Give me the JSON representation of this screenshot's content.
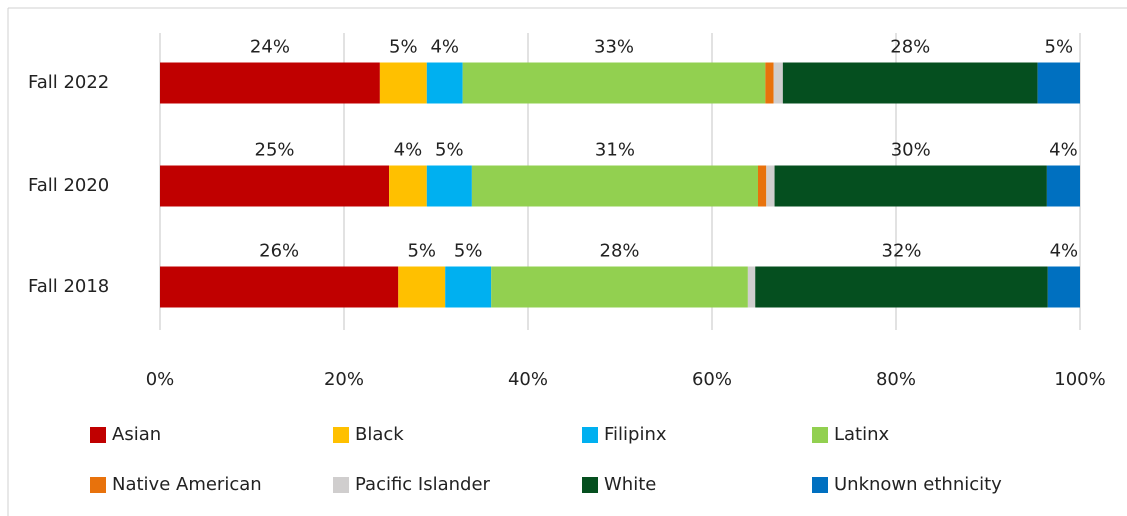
{
  "chart_data": {
    "type": "stacked-bar-horizontal",
    "categories": [
      "Fall 2022",
      "Fall 2020",
      "Fall 2018"
    ],
    "series": [
      {
        "name": "Asian",
        "color": "#c00000",
        "values": [
          23.9,
          24.9,
          25.9
        ],
        "value_labels": [
          "24%",
          "25%",
          "26%"
        ]
      },
      {
        "name": "Black",
        "color": "#ffc000",
        "values": [
          5.1,
          4.1,
          5.1
        ],
        "value_labels": [
          "5%",
          "4%",
          "5%"
        ]
      },
      {
        "name": "Filipinx",
        "color": "#00b0f0",
        "values": [
          3.9,
          4.9,
          5.0
        ],
        "value_labels": [
          "4%",
          "5%",
          "5%"
        ]
      },
      {
        "name": "Latinx",
        "color": "#92d050",
        "values": [
          32.9,
          31.1,
          27.9
        ],
        "value_labels": [
          "33%",
          "31%",
          "28%"
        ]
      },
      {
        "name": "Native American",
        "color": "#e8720c",
        "values": [
          0.9,
          0.9,
          0
        ]
      },
      {
        "name": "Pacific Islander",
        "color": "#d0cece",
        "values": [
          1.0,
          0.9,
          0.8
        ]
      },
      {
        "name": "White",
        "color": "#054f1f",
        "values": [
          27.7,
          29.6,
          31.8
        ],
        "value_labels": [
          "28%",
          "30%",
          "32%"
        ]
      },
      {
        "name": "Unknown ethnicity",
        "color": "#0070c0",
        "values": [
          4.6,
          3.6,
          3.5
        ],
        "value_labels": [
          "5%",
          "4%",
          "4%"
        ]
      }
    ],
    "xlim": [
      0,
      100
    ],
    "xticks": [
      {
        "value": 0,
        "label": "0%"
      },
      {
        "value": 20,
        "label": "20%"
      },
      {
        "value": 40,
        "label": "40%"
      },
      {
        "value": 60,
        "label": "60%"
      },
      {
        "value": 80,
        "label": "80%"
      },
      {
        "value": 100,
        "label": "100%"
      }
    ],
    "grid": true
  }
}
